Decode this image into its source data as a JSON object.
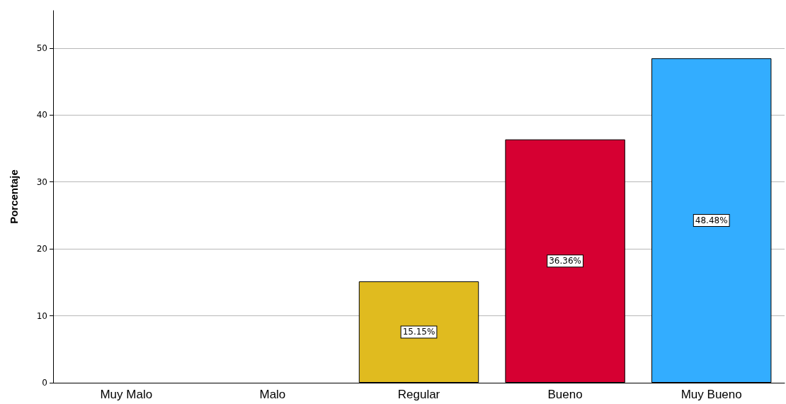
{
  "chart_data": {
    "type": "bar",
    "ylabel": "Porcentaje",
    "categories": [
      "Muy Malo",
      "Malo",
      "Regular",
      "Bueno",
      "Muy Bueno"
    ],
    "values": [
      null,
      null,
      15.15,
      36.36,
      48.48
    ],
    "value_labels": [
      null,
      null,
      "15.15%",
      "36.36%",
      "48.48%"
    ],
    "colors": [
      "#e0bb1f",
      "#e0bb1f",
      "#e0bb1f",
      "#d60032",
      "#33adff"
    ],
    "ylim": [
      0,
      55.6
    ],
    "yticks": [
      0,
      10,
      20,
      30,
      40,
      50
    ],
    "grid": "y"
  }
}
